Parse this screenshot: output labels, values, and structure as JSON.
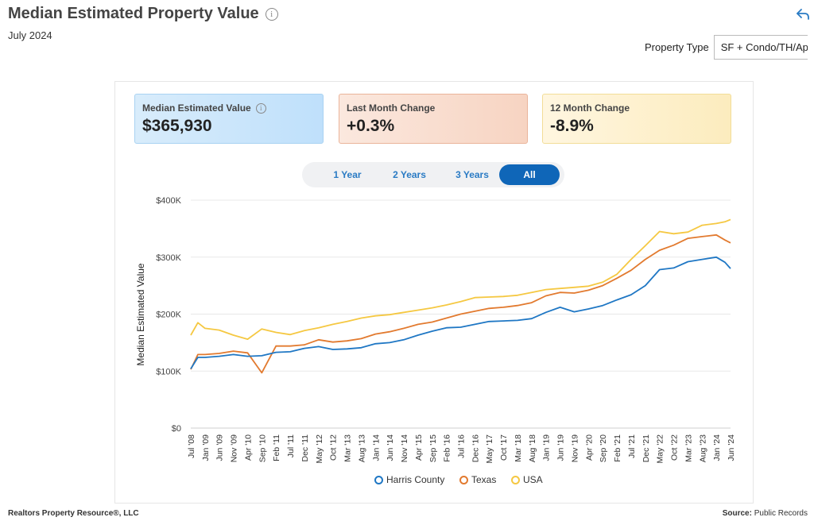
{
  "header": {
    "title": "Median Estimated Property Value",
    "subtitle": "July 2024",
    "property_type_label": "Property Type",
    "property_type_value": "SF + Condo/TH/Apt"
  },
  "cards": [
    {
      "label": "Median Estimated Value",
      "value": "$365,930"
    },
    {
      "label": "Last Month Change",
      "value": "+0.3%"
    },
    {
      "label": "12 Month Change",
      "value": "-8.9%"
    }
  ],
  "tabs": [
    "1 Year",
    "2 Years",
    "3 Years",
    "All"
  ],
  "active_tab": "All",
  "footer": {
    "left": "Realtors Property Resource®, LLC",
    "right_label": "Source:",
    "right_value": "Public Records"
  },
  "chart_data": {
    "type": "line",
    "ylabel": "Median Estimated Value",
    "xlabel": "",
    "ylim": [
      0,
      400000
    ],
    "y_ticks": [
      "$0",
      "$100K",
      "$200K",
      "$300K",
      "$400K"
    ],
    "x_ticks": [
      "Jul '08",
      "Jan '09",
      "Jun '09",
      "Nov '09",
      "Apr '10",
      "Sep '10",
      "Feb '11",
      "Jul '11",
      "Dec '11",
      "May '12",
      "Oct '12",
      "Mar '13",
      "Aug '13",
      "Jan '14",
      "Jun '14",
      "Nov '14",
      "Apr '15",
      "Sep '15",
      "Feb '16",
      "Jul '16",
      "Dec '16",
      "May '17",
      "Oct '17",
      "Mar '18",
      "Aug '18",
      "Jan '19",
      "Jun '19",
      "Nov '19",
      "Apr '20",
      "Sep '20",
      "Feb '21",
      "Jul '21",
      "Dec '21",
      "May '22",
      "Oct '22",
      "Mar '23",
      "Aug '23",
      "Jan '24",
      "Jun '24"
    ],
    "grid": true,
    "legend_position": "bottom",
    "x": [
      "Jul '08",
      "Oct '08",
      "Jan '09",
      "Jun '09",
      "Nov '09",
      "Apr '10",
      "Sep '10",
      "Feb '11",
      "Jul '11",
      "Dec '11",
      "May '12",
      "Oct '12",
      "Mar '13",
      "Aug '13",
      "Jan '14",
      "Jun '14",
      "Nov '14",
      "Apr '15",
      "Sep '15",
      "Feb '16",
      "Jul '16",
      "Dec '16",
      "May '17",
      "Oct '17",
      "Mar '18",
      "Aug '18",
      "Jan '19",
      "Jun '19",
      "Nov '19",
      "Apr '20",
      "Sep '20",
      "Feb '21",
      "Jul '21",
      "Dec '21",
      "May '22",
      "Oct '22",
      "Mar '23",
      "Aug '23",
      "Jan '24",
      "Apr '24",
      "Jun '24"
    ],
    "series": [
      {
        "name": "Harris County",
        "color": "#1f77c4",
        "values": [
          104000,
          124000,
          124000,
          126000,
          129000,
          126000,
          127000,
          133000,
          134000,
          140000,
          143000,
          138000,
          139000,
          141000,
          148000,
          150000,
          155000,
          163000,
          170000,
          176000,
          177000,
          182000,
          187000,
          188000,
          189000,
          192000,
          203000,
          212000,
          204000,
          209000,
          215000,
          225000,
          234000,
          250000,
          278000,
          281000,
          292000,
          296000,
          300000,
          291000,
          280000
        ]
      },
      {
        "name": "Texas",
        "color": "#e27a2f",
        "values": [
          103000,
          129000,
          129000,
          131000,
          135000,
          132000,
          97000,
          144000,
          144000,
          146000,
          155000,
          151000,
          153000,
          157000,
          165000,
          169000,
          175000,
          182000,
          186000,
          193000,
          200000,
          205000,
          210000,
          212000,
          215000,
          220000,
          232000,
          238000,
          237000,
          242000,
          250000,
          263000,
          277000,
          296000,
          312000,
          321000,
          333000,
          336000,
          339000,
          330000,
          325000
        ]
      },
      {
        "name": "USA",
        "color": "#f5c842",
        "values": [
          163000,
          185000,
          175000,
          172000,
          163000,
          156000,
          174000,
          168000,
          164000,
          171000,
          176000,
          182000,
          187000,
          193000,
          197000,
          199000,
          203000,
          207000,
          211000,
          216000,
          222000,
          229000,
          230000,
          231000,
          233000,
          238000,
          243000,
          245000,
          247000,
          249000,
          256000,
          270000,
          296000,
          320000,
          345000,
          341000,
          344000,
          356000,
          359000,
          362000,
          366000
        ]
      }
    ]
  }
}
